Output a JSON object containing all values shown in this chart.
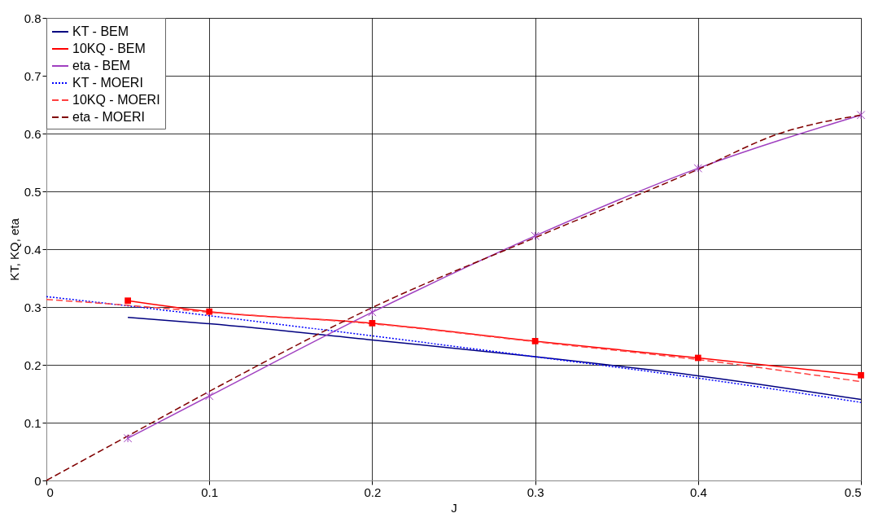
{
  "chart_data": {
    "type": "line",
    "xlabel": "J",
    "ylabel": "KT, KQ, eta",
    "xlim": [
      0,
      0.5
    ],
    "ylim": [
      0,
      0.8
    ],
    "xticks": [
      0,
      0.1,
      0.2,
      0.3,
      0.4,
      0.5
    ],
    "yticks": [
      0,
      0.1,
      0.2,
      0.3,
      0.4,
      0.5,
      0.6,
      0.7,
      0.8
    ],
    "grid": true,
    "legend": "top left",
    "series": [
      {
        "name": "KT - BEM",
        "color": "#000080",
        "line_style": "solid",
        "marker": "none",
        "x": [
          0.05,
          0.1,
          0.2,
          0.3,
          0.4,
          0.5
        ],
        "values": [
          0.282,
          0.271,
          0.243,
          0.214,
          0.181,
          0.14
        ]
      },
      {
        "name": "10KQ - BEM",
        "color": "#ff0000",
        "line_style": "solid",
        "marker": "square",
        "x": [
          0.05,
          0.1,
          0.2,
          0.3,
          0.4,
          0.5
        ],
        "values": [
          0.311,
          0.292,
          0.272,
          0.241,
          0.212,
          0.182
        ]
      },
      {
        "name": "eta - BEM",
        "color": "#a040c0",
        "line_style": "solid",
        "marker": "cross",
        "x": [
          0.05,
          0.1,
          0.2,
          0.3,
          0.4,
          0.5
        ],
        "values": [
          0.073,
          0.146,
          0.291,
          0.423,
          0.54,
          0.632
        ]
      },
      {
        "name": "KT - MOERI",
        "color": "#0000ff",
        "line_style": "dotted",
        "marker": "none",
        "x": [
          0,
          0.05,
          0.1,
          0.2,
          0.3,
          0.4,
          0.5
        ],
        "values": [
          0.318,
          0.302,
          0.285,
          0.25,
          0.214,
          0.177,
          0.135
        ]
      },
      {
        "name": "10KQ - MOERI",
        "color": "#ff4040",
        "line_style": "dashed",
        "marker": "none",
        "x": [
          0,
          0.05,
          0.1,
          0.2,
          0.3,
          0.4,
          0.5
        ],
        "values": [
          0.313,
          0.303,
          0.291,
          0.271,
          0.24,
          0.209,
          0.171
        ]
      },
      {
        "name": "eta - MOERI",
        "color": "#800000",
        "line_style": "dashed",
        "marker": "none",
        "x": [
          0,
          0.05,
          0.1,
          0.2,
          0.3,
          0.4,
          0.45,
          0.5
        ],
        "values": [
          0,
          0.077,
          0.154,
          0.299,
          0.42,
          0.538,
          0.6,
          0.632
        ]
      }
    ]
  }
}
